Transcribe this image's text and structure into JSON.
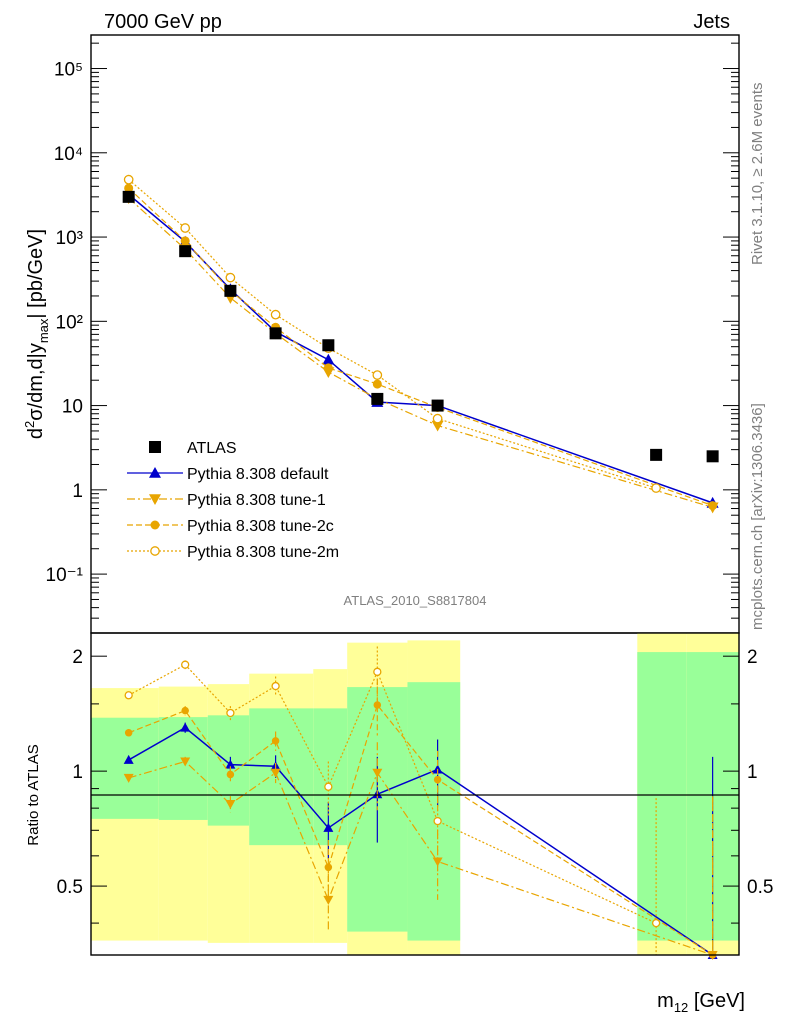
{
  "header": {
    "left": "7000 GeV pp",
    "right": "Jets"
  },
  "side": {
    "rivet": "Rivet 3.1.10, ≥ 2.6M events",
    "mcplots": "mcplots.cern.ch [arXiv:1306.3436]"
  },
  "chart_data": {
    "type": "scatter",
    "analysis_label": "ATLAS_2010_S8817804",
    "ylabel": "d²σ/dm,d|y_max| [pb/GeV]",
    "xlabel": "m_12 [GeV]",
    "ratio_ylabel": "Ratio to ATLAS",
    "y_scale": "log",
    "ylim": [
      0.02,
      250000
    ],
    "ratio_ylim": [
      0.33,
      2.3
    ],
    "y_ticks": [
      "10⁻¹",
      "1",
      "10",
      "10²",
      "10³",
      "10⁴",
      "10⁵"
    ],
    "ratio_ticks": [
      "0.5",
      "1",
      "2"
    ],
    "legend_position": "lower-left",
    "legend": [
      "ATLAS",
      "Pythia 8.308 default",
      "Pythia 8.308 tune-1",
      "Pythia 8.308 tune-2c",
      "Pythia 8.308 tune-2m"
    ],
    "bins": [
      {
        "lo": 0.0,
        "hi": 0.18
      },
      {
        "lo": 0.18,
        "hi": 0.31
      },
      {
        "lo": 0.31,
        "hi": 0.42
      },
      {
        "lo": 0.42,
        "hi": 0.59
      },
      {
        "lo": 0.59,
        "hi": 0.68
      },
      {
        "lo": 0.68,
        "hi": 0.84
      },
      {
        "lo": 0.84,
        "hi": 0.98
      },
      {
        "lo": 0.98,
        "hi": 1.15
      },
      {
        "lo": 1.15,
        "hi": 1.45
      },
      {
        "lo": 1.45,
        "hi": 1.58
      },
      {
        "lo": 1.58,
        "hi": 1.72
      }
    ],
    "atlas": {
      "x": [
        0.1,
        0.25,
        0.37,
        0.49,
        0.63,
        0.76,
        0.92,
        1.5,
        1.65
      ],
      "y": [
        3000,
        680,
        230,
        72,
        52,
        12,
        10,
        2.6,
        2.5
      ]
    },
    "bands": {
      "green": [
        [
          0.75,
          1.38
        ],
        [
          0.745,
          1.385
        ],
        [
          0.72,
          1.4
        ],
        [
          0.64,
          1.46
        ],
        [
          0.64,
          1.46
        ],
        [
          0.38,
          1.66
        ],
        [
          0.36,
          1.71
        ],
        [
          null,
          null
        ],
        [
          null,
          null
        ],
        [
          0.36,
          2.05
        ],
        [
          0.36,
          2.05
        ]
      ],
      "yellow": [
        [
          0.36,
          1.65
        ],
        [
          0.36,
          1.665
        ],
        [
          0.355,
          1.69
        ],
        [
          0.355,
          1.8
        ],
        [
          0.355,
          1.85
        ],
        [
          0.33,
          2.17
        ],
        [
          0.33,
          2.2
        ],
        [
          null,
          null
        ],
        [
          null,
          null
        ],
        [
          0.33,
          2.35
        ],
        [
          0.33,
          2.35
        ]
      ]
    },
    "series": [
      {
        "name": "Pythia 8.308 default",
        "color": "#0000cc",
        "marker": "triangle-up",
        "style": "solid",
        "x": [
          0.1,
          0.25,
          0.37,
          0.49,
          0.63,
          0.76,
          0.92,
          1.65
        ],
        "y": [
          3200,
          880,
          240,
          75,
          35,
          11,
          10,
          0.7
        ],
        "ratio": [
          1.07,
          1.3,
          1.04,
          1.03,
          0.71,
          0.87,
          1.01,
          0.29
        ],
        "ratio_err": [
          0.02,
          0.04,
          0.05,
          0.07,
          0.12,
          0.22,
          0.2,
          0.8
        ]
      },
      {
        "name": "Pythia 8.308 tune-1",
        "color": "#e8a500",
        "marker": "triangle-down",
        "style": "dashdot",
        "x": [
          0.1,
          0.25,
          0.37,
          0.49,
          0.63,
          0.76,
          0.92,
          1.65
        ],
        "y": [
          2900,
          720,
          190,
          72,
          25,
          12,
          5.8,
          0.62
        ],
        "ratio": [
          0.96,
          1.06,
          0.82,
          0.99,
          0.46,
          0.99,
          0.58,
          0.25
        ],
        "ratio_err": [
          0.02,
          0.03,
          0.04,
          0.06,
          0.08,
          0.2,
          0.12,
          0.6
        ]
      },
      {
        "name": "Pythia 8.308 tune-2c",
        "color": "#e8a500",
        "marker": "circle",
        "style": "dashed",
        "x": [
          0.1,
          0.25,
          0.37,
          0.49,
          0.63,
          0.76,
          0.92,
          1.65
        ],
        "y": [
          3800,
          900,
          230,
          85,
          28,
          18,
          9.5,
          0.65
        ],
        "ratio": [
          1.26,
          1.44,
          0.98,
          1.2,
          0.56,
          1.49,
          0.95,
          0.26
        ],
        "ratio_err": [
          0.02,
          0.04,
          0.05,
          0.07,
          0.1,
          0.25,
          0.18,
          0.6
        ]
      },
      {
        "name": "Pythia 8.308 tune-2m",
        "color": "#e8a500",
        "marker": "open-circle",
        "style": "dotted",
        "x": [
          0.1,
          0.25,
          0.37,
          0.49,
          0.63,
          0.76,
          0.92,
          1.5
        ],
        "y": [
          4800,
          1280,
          330,
          120,
          48,
          23,
          7,
          1.05
        ],
        "ratio": [
          1.58,
          1.9,
          1.42,
          1.67,
          0.91,
          1.82,
          0.74,
          0.4
        ],
        "ratio_err": [
          0.02,
          0.05,
          0.06,
          0.1,
          0.15,
          0.3,
          0.2,
          0.45
        ]
      }
    ]
  }
}
